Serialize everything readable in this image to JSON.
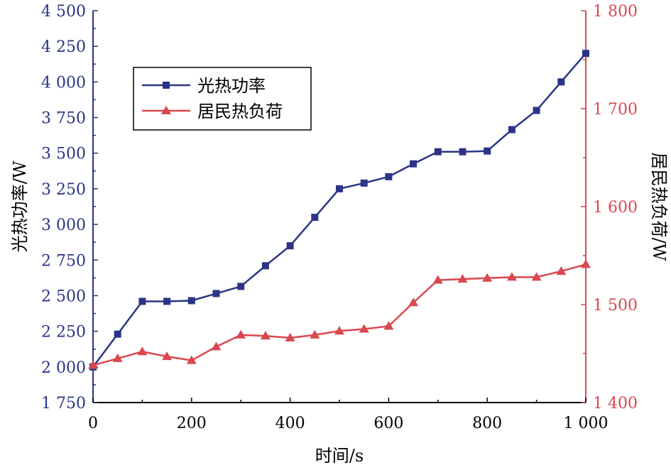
{
  "chart_data": {
    "type": "line",
    "xlabel": "时间/s",
    "ylabel_left": "光热功率/W",
    "ylabel_right": "居民热负荷/W",
    "xlim": [
      0,
      1000
    ],
    "ylim_left": [
      1750,
      4500
    ],
    "ylim_right": [
      1400,
      1800
    ],
    "x_ticks": [
      0,
      200,
      400,
      600,
      800,
      1000
    ],
    "x_tick_labels": [
      "0",
      "200",
      "400",
      "600",
      "800",
      "1 000"
    ],
    "y_left_ticks": [
      1750,
      2000,
      2250,
      2500,
      2750,
      3000,
      3250,
      3500,
      3750,
      4000,
      4250,
      4500
    ],
    "y_left_tick_labels": [
      "1 750",
      "2 000",
      "2 250",
      "2 500",
      "2 750",
      "3 000",
      "3 250",
      "3 500",
      "3 750",
      "4 000",
      "4 250",
      "4 500"
    ],
    "y_right_ticks": [
      1400,
      1500,
      1600,
      1700,
      1800
    ],
    "y_right_tick_labels": [
      "1 400",
      "1 500",
      "1 600",
      "1 700",
      "1 800"
    ],
    "grid": false,
    "legend_position": "top-left",
    "x": [
      0,
      50,
      100,
      150,
      200,
      250,
      300,
      350,
      400,
      450,
      500,
      550,
      600,
      650,
      700,
      750,
      800,
      850,
      900,
      950,
      1000
    ],
    "series": [
      {
        "name": "光热功率",
        "axis": "left",
        "marker": "square",
        "color": "#2b3486",
        "values": [
          2000,
          2230,
          2460,
          2460,
          2465,
          2515,
          2565,
          2710,
          2850,
          3050,
          3250,
          3290,
          3335,
          3425,
          3510,
          3510,
          3515,
          3665,
          3800,
          4000,
          4200
        ]
      },
      {
        "name": "居民热负荷",
        "axis": "right",
        "marker": "triangle",
        "color": "#d9474f",
        "values": [
          1438,
          1445,
          1452,
          1447,
          1443,
          1457,
          1469,
          1468,
          1466,
          1469,
          1473,
          1475,
          1478,
          1502,
          1525,
          1526,
          1527,
          1528,
          1528,
          1534,
          1541
        ]
      }
    ]
  }
}
